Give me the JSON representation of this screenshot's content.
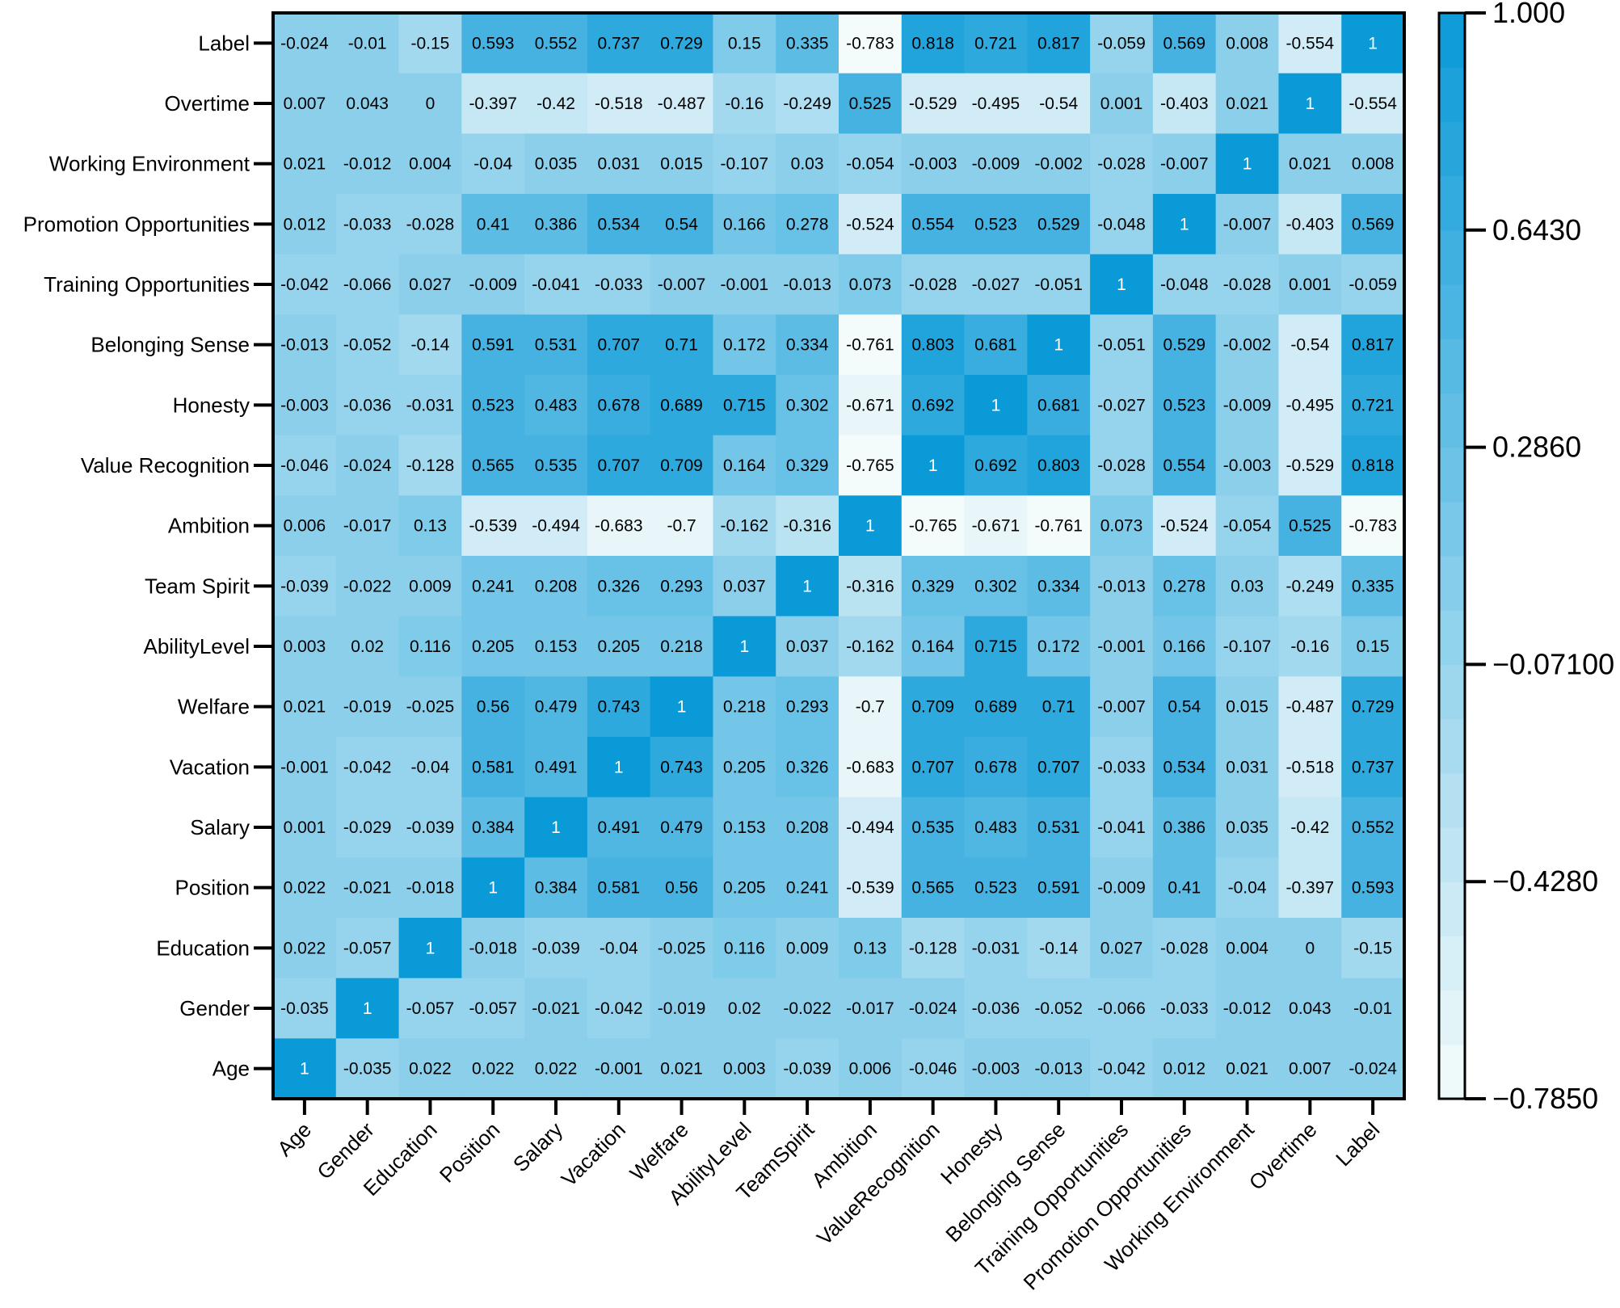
{
  "chart_data": {
    "type": "heatmap",
    "title": "",
    "x_labels": [
      "Age",
      "Gender",
      "Education",
      "Position",
      "Salary",
      "Vacation",
      "Welfare",
      "AbilityLevel",
      "TeamSpirit",
      "Ambition",
      "ValueRecognition",
      "Honesty",
      "Belonging Sense",
      "Training Opportunities",
      "Promotion Opportunities",
      "Working Environment",
      "Overtime",
      "Label"
    ],
    "y_labels": [
      "Label",
      "Overtime",
      "Working Environment",
      "Promotion Opportunities",
      "Training Opportunities",
      "Belonging Sense",
      "Honesty",
      "Value Recognition",
      "Ambition",
      "Team Spirit",
      "AbilityLevel",
      "Welfare",
      "Vacation",
      "Salary",
      "Position",
      "Education",
      "Gender",
      "Age"
    ],
    "values": [
      [
        "-0.024",
        "-0.01",
        "-0.15",
        "0.593",
        "0.552",
        "0.737",
        "0.729",
        "0.15",
        "0.335",
        "-0.783",
        "0.818",
        "0.721",
        "0.817",
        "-0.059",
        "0.569",
        "0.008",
        "-0.554",
        "1"
      ],
      [
        "0.007",
        "0.043",
        "0",
        "-0.397",
        "-0.42",
        "-0.518",
        "-0.487",
        "-0.16",
        "-0.249",
        "0.525",
        "-0.529",
        "-0.495",
        "-0.54",
        "0.001",
        "-0.403",
        "0.021",
        "1",
        "-0.554"
      ],
      [
        "0.021",
        "-0.012",
        "0.004",
        "-0.04",
        "0.035",
        "0.031",
        "0.015",
        "-0.107",
        "0.03",
        "-0.054",
        "-0.003",
        "-0.009",
        "-0.002",
        "-0.028",
        "-0.007",
        "1",
        "0.021",
        "0.008"
      ],
      [
        "0.012",
        "-0.033",
        "-0.028",
        "0.41",
        "0.386",
        "0.534",
        "0.54",
        "0.166",
        "0.278",
        "-0.524",
        "0.554",
        "0.523",
        "0.529",
        "-0.048",
        "1",
        "-0.007",
        "-0.403",
        "0.569"
      ],
      [
        "-0.042",
        "-0.066",
        "0.027",
        "-0.009",
        "-0.041",
        "-0.033",
        "-0.007",
        "-0.001",
        "-0.013",
        "0.073",
        "-0.028",
        "-0.027",
        "-0.051",
        "1",
        "-0.048",
        "-0.028",
        "0.001",
        "-0.059"
      ],
      [
        "-0.013",
        "-0.052",
        "-0.14",
        "0.591",
        "0.531",
        "0.707",
        "0.71",
        "0.172",
        "0.334",
        "-0.761",
        "0.803",
        "0.681",
        "1",
        "-0.051",
        "0.529",
        "-0.002",
        "-0.54",
        "0.817"
      ],
      [
        "-0.003",
        "-0.036",
        "-0.031",
        "0.523",
        "0.483",
        "0.678",
        "0.689",
        "0.715",
        "0.302",
        "-0.671",
        "0.692",
        "1",
        "0.681",
        "-0.027",
        "0.523",
        "-0.009",
        "-0.495",
        "0.721"
      ],
      [
        "-0.046",
        "-0.024",
        "-0.128",
        "0.565",
        "0.535",
        "0.707",
        "0.709",
        "0.164",
        "0.329",
        "-0.765",
        "1",
        "0.692",
        "0.803",
        "-0.028",
        "0.554",
        "-0.003",
        "-0.529",
        "0.818"
      ],
      [
        "0.006",
        "-0.017",
        "0.13",
        "-0.539",
        "-0.494",
        "-0.683",
        "-0.7",
        "-0.162",
        "-0.316",
        "1",
        "-0.765",
        "-0.671",
        "-0.761",
        "0.073",
        "-0.524",
        "-0.054",
        "0.525",
        "-0.783"
      ],
      [
        "-0.039",
        "-0.022",
        "0.009",
        "0.241",
        "0.208",
        "0.326",
        "0.293",
        "0.037",
        "1",
        "-0.316",
        "0.329",
        "0.302",
        "0.334",
        "-0.013",
        "0.278",
        "0.03",
        "-0.249",
        "0.335"
      ],
      [
        "0.003",
        "0.02",
        "0.116",
        "0.205",
        "0.153",
        "0.205",
        "0.218",
        "1",
        "0.037",
        "-0.162",
        "0.164",
        "0.715",
        "0.172",
        "-0.001",
        "0.166",
        "-0.107",
        "-0.16",
        "0.15"
      ],
      [
        "0.021",
        "-0.019",
        "-0.025",
        "0.56",
        "0.479",
        "0.743",
        "1",
        "0.218",
        "0.293",
        "-0.7",
        "0.709",
        "0.689",
        "0.71",
        "-0.007",
        "0.54",
        "0.015",
        "-0.487",
        "0.729"
      ],
      [
        "-0.001",
        "-0.042",
        "-0.04",
        "0.581",
        "0.491",
        "1",
        "0.743",
        "0.205",
        "0.326",
        "-0.683",
        "0.707",
        "0.678",
        "0.707",
        "-0.033",
        "0.534",
        "0.031",
        "-0.518",
        "0.737"
      ],
      [
        "0.001",
        "-0.029",
        "-0.039",
        "0.384",
        "1",
        "0.491",
        "0.479",
        "0.153",
        "0.208",
        "-0.494",
        "0.535",
        "0.483",
        "0.531",
        "-0.041",
        "0.386",
        "0.035",
        "-0.42",
        "0.552"
      ],
      [
        "0.022",
        "-0.021",
        "-0.018",
        "1",
        "0.384",
        "0.581",
        "0.56",
        "0.205",
        "0.241",
        "-0.539",
        "0.565",
        "0.523",
        "0.591",
        "-0.009",
        "0.41",
        "-0.04",
        "-0.397",
        "0.593"
      ],
      [
        "0.022",
        "-0.057",
        "1",
        "-0.018",
        "-0.039",
        "-0.04",
        "-0.025",
        "0.116",
        "0.009",
        "0.13",
        "-0.128",
        "-0.031",
        "-0.14",
        "0.027",
        "-0.028",
        "0.004",
        "0",
        "-0.15"
      ],
      [
        "-0.035",
        "1",
        "-0.057",
        "-0.057",
        "-0.021",
        "-0.042",
        "-0.019",
        "0.02",
        "-0.022",
        "-0.017",
        "-0.024",
        "-0.036",
        "-0.052",
        "-0.066",
        "-0.033",
        "-0.012",
        "0.043",
        "-0.01"
      ],
      [
        "1",
        "-0.035",
        "0.022",
        "0.022",
        "0.022",
        "-0.001",
        "0.021",
        "0.003",
        "-0.039",
        "0.006",
        "-0.046",
        "-0.003",
        "-0.013",
        "-0.042",
        "0.012",
        "0.021",
        "0.007",
        "-0.024"
      ]
    ],
    "colorbar": {
      "min": -0.785,
      "max": 1.0,
      "ticks": [
        1.0,
        0.643,
        0.286,
        -0.071,
        -0.428,
        -0.785
      ],
      "tick_labels": [
        "1.000",
        "0.6430",
        "0.2860",
        "−0.07100",
        "−0.4280",
        "−0.7850"
      ],
      "color_low": "#f4fbfb",
      "color_high": "#0a9ad8"
    }
  }
}
